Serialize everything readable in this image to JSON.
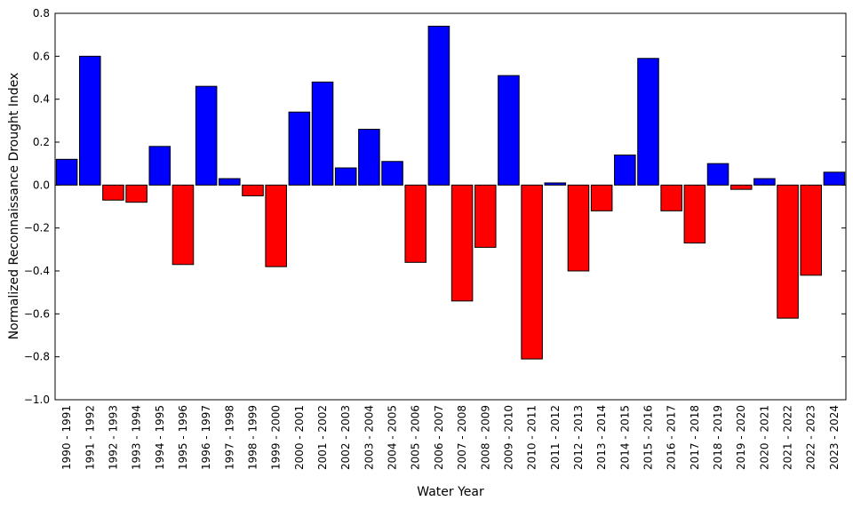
{
  "chart_data": {
    "type": "bar",
    "xlabel": "Water Year",
    "ylabel": "Normalized Reconnaissance Drought Index",
    "categories": [
      "1990 - 1991",
      "1991 - 1992",
      "1992 - 1993",
      "1993 - 1994",
      "1994 - 1995",
      "1995 - 1996",
      "1996 - 1997",
      "1997 - 1998",
      "1998 - 1999",
      "1999 - 2000",
      "2000 - 2001",
      "2001 - 2002",
      "2002 - 2003",
      "2003 - 2004",
      "2004 - 2005",
      "2005 - 2006",
      "2006 - 2007",
      "2007 - 2008",
      "2008 - 2009",
      "2009 - 2010",
      "2010 - 2011",
      "2011 - 2012",
      "2012 - 2013",
      "2013 - 2014",
      "2014 - 2015",
      "2015 - 2016",
      "2016 - 2017",
      "2017 - 2018",
      "2018 - 2019",
      "2019 - 2020",
      "2020 - 2021",
      "2021 - 2022",
      "2022 - 2023",
      "2023 - 2024"
    ],
    "values": [
      0.12,
      0.6,
      -0.07,
      -0.08,
      0.18,
      -0.37,
      0.46,
      0.03,
      -0.05,
      -0.38,
      0.34,
      0.48,
      0.08,
      0.26,
      0.11,
      -0.36,
      0.74,
      -0.54,
      -0.29,
      0.51,
      -0.81,
      0.01,
      -0.4,
      -0.12,
      0.14,
      0.59,
      -0.12,
      -0.27,
      0.1,
      -0.02,
      0.03,
      -0.62,
      -0.42,
      0.06
    ],
    "positive_color": "#0000ff",
    "negative_color": "#ff0000",
    "ylim": [
      -1.0,
      0.8
    ],
    "yticks": [
      0.8,
      0.6,
      0.4,
      0.2,
      {
        "value": 0,
        "label": "0.0"
      },
      {
        "value": -0.2,
        "label": "−0.2"
      },
      {
        "value": -0.4,
        "label": "−0.4"
      },
      {
        "value": -0.6,
        "label": "−0.6"
      },
      {
        "value": -0.8,
        "label": "−0.8"
      },
      {
        "value": -1.0,
        "label": "−1.0"
      }
    ],
    "grid": false
  }
}
